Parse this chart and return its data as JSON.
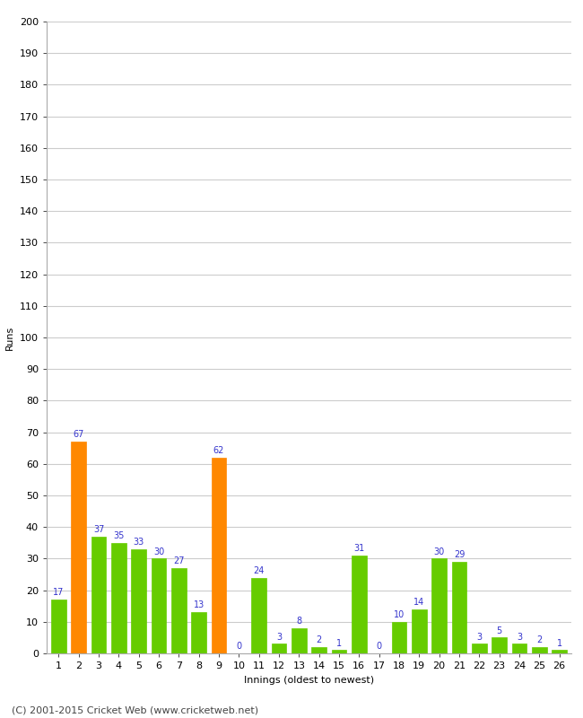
{
  "innings": [
    1,
    2,
    3,
    4,
    5,
    6,
    7,
    8,
    9,
    10,
    11,
    12,
    13,
    14,
    15,
    16,
    17,
    18,
    19,
    20,
    21,
    22,
    23,
    24,
    25,
    26
  ],
  "runs": [
    17,
    67,
    37,
    35,
    33,
    30,
    27,
    13,
    62,
    0,
    24,
    3,
    8,
    2,
    1,
    31,
    0,
    10,
    14,
    30,
    29,
    3,
    5,
    3,
    2,
    1
  ],
  "colors": [
    "#66cc00",
    "#ff8800",
    "#66cc00",
    "#66cc00",
    "#66cc00",
    "#66cc00",
    "#66cc00",
    "#66cc00",
    "#ff8800",
    "#66cc00",
    "#66cc00",
    "#66cc00",
    "#66cc00",
    "#66cc00",
    "#66cc00",
    "#66cc00",
    "#66cc00",
    "#66cc00",
    "#66cc00",
    "#66cc00",
    "#66cc00",
    "#66cc00",
    "#66cc00",
    "#66cc00",
    "#66cc00",
    "#66cc00"
  ],
  "xlabel": "Innings (oldest to newest)",
  "ylabel": "Runs",
  "ylim": [
    0,
    200
  ],
  "yticks": [
    0,
    10,
    20,
    30,
    40,
    50,
    60,
    70,
    80,
    90,
    100,
    110,
    120,
    130,
    140,
    150,
    160,
    170,
    180,
    190,
    200
  ],
  "label_color": "#3333cc",
  "label_fontsize": 7,
  "axis_tick_fontsize": 8,
  "axis_label_fontsize": 8,
  "footer": "(C) 2001-2015 Cricket Web (www.cricketweb.net)",
  "footer_fontsize": 8,
  "background_color": "#ffffff",
  "grid_color": "#cccccc"
}
